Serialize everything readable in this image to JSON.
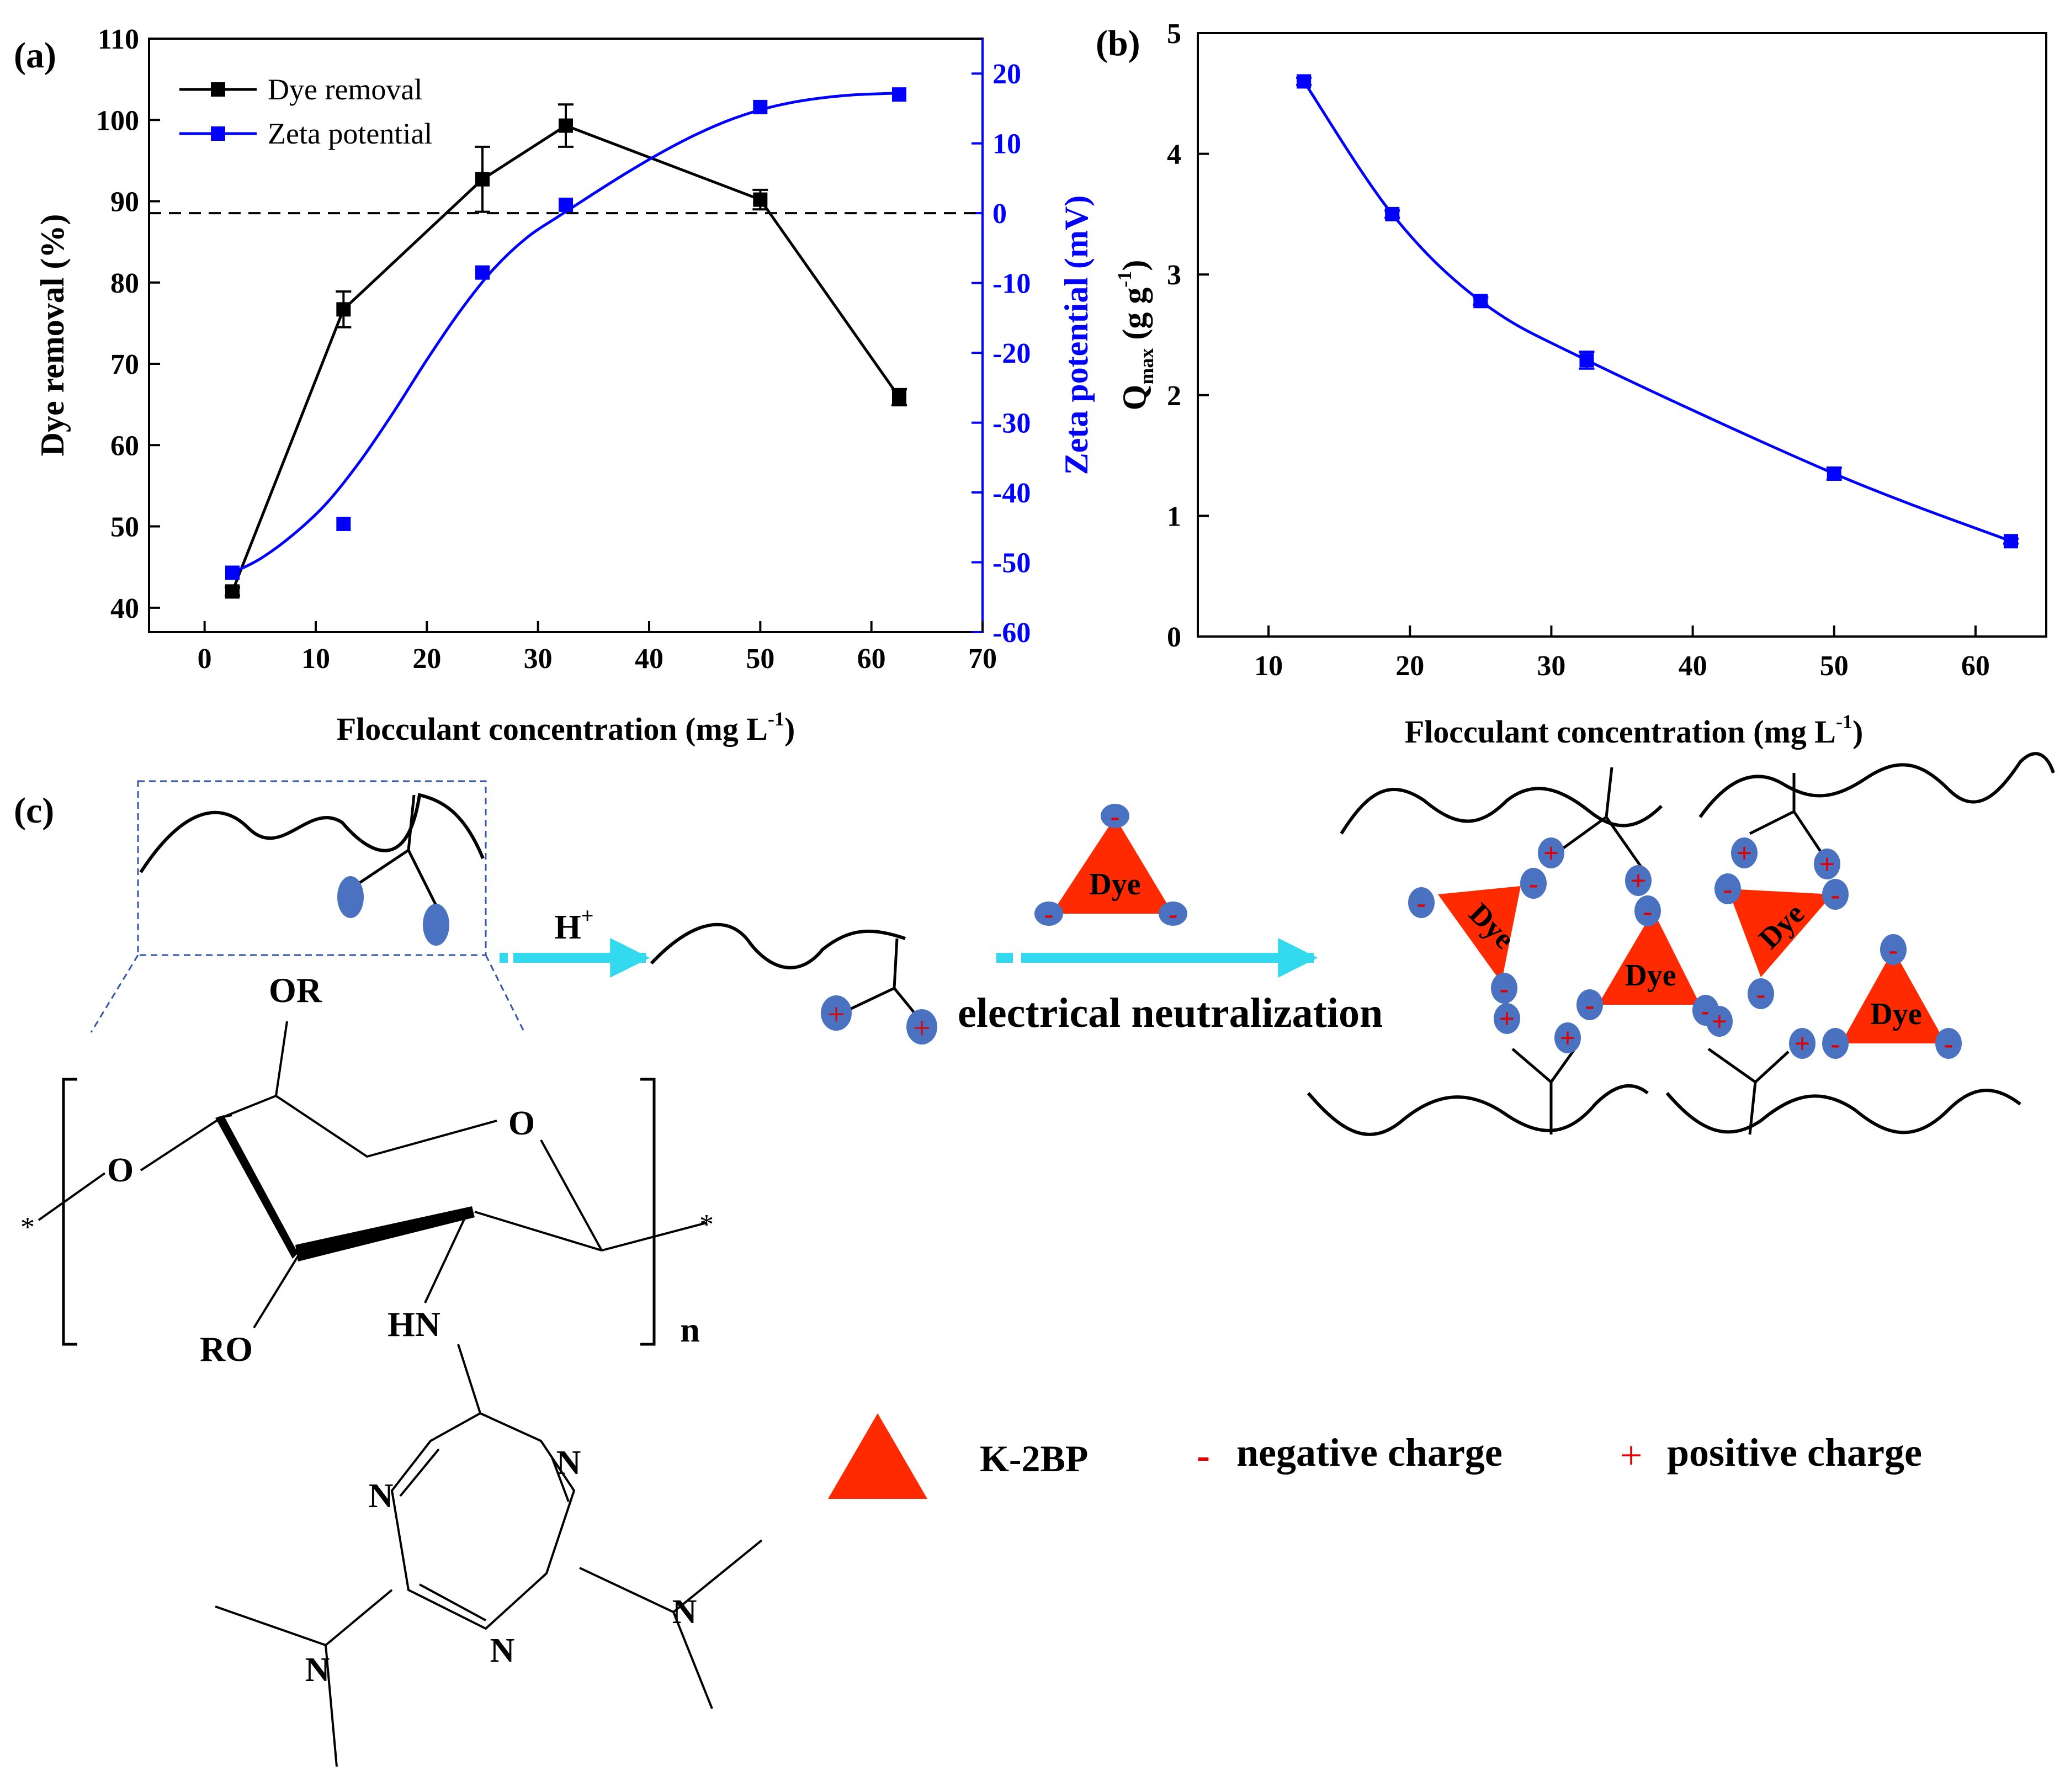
{
  "chart_data": [
    {
      "id": "a",
      "panel_label": "(a)",
      "type": "line",
      "xlabel_main": "Flocculant concentration (mg L",
      "xlabel_sup": "-1",
      "xlabel_end": ")",
      "ylabel": "Dye removal (%)",
      "y2label": "Zeta potential (mV)",
      "xlim": [
        -5,
        70
      ],
      "ylim": [
        37,
        110
      ],
      "y2lim": [
        -60,
        25
      ],
      "xticks": [
        0,
        10,
        20,
        30,
        40,
        50,
        60,
        70
      ],
      "yticks": [
        40,
        50,
        60,
        70,
        80,
        90,
        100,
        110
      ],
      "y2ticks": [
        -60,
        -50,
        -40,
        -30,
        -20,
        -10,
        0,
        10,
        20
      ],
      "reference_line": {
        "axis": "y2",
        "value": 0,
        "style": "dashed"
      },
      "series": [
        {
          "name": "Dye removal",
          "axis": "y",
          "color": "#000000",
          "x": [
            2.5,
            12.5,
            25,
            32.5,
            50,
            62.5
          ],
          "values": [
            42,
            76.7,
            92.7,
            99.3,
            90.2,
            65.9
          ],
          "errors": [
            0.5,
            2.2,
            4.0,
            2.6,
            1.2,
            1.0
          ]
        },
        {
          "name": "Zeta potential",
          "axis": "y2",
          "color": "#0000ff",
          "x": [
            2.5,
            12.5,
            25,
            32.5,
            50,
            62.5
          ],
          "values": [
            -51.5,
            -44.5,
            -8.5,
            1.2,
            15.2,
            17.0
          ]
        }
      ],
      "zeta_fit_curve": {
        "x": [
          2.5,
          5,
          8,
          11,
          14,
          17,
          20,
          23,
          26,
          29,
          32,
          35,
          38,
          41,
          44,
          47,
          50,
          53,
          56,
          59,
          62.5
        ],
        "y": [
          -51.5,
          -49.5,
          -46,
          -41.5,
          -35.5,
          -28.5,
          -21,
          -14,
          -8,
          -3.5,
          -0.3,
          2.8,
          5.8,
          8.6,
          11.1,
          13.2,
          14.8,
          15.9,
          16.6,
          17.0,
          17.2
        ]
      }
    },
    {
      "id": "b",
      "panel_label": "(b)",
      "type": "line",
      "xlabel_main": "Flocculant concentration (mg L",
      "xlabel_sup": "-1",
      "xlabel_end": ")",
      "ylabel_main": "Q",
      "ylabel_sub": "max",
      "ylabel_unit": " (g g",
      "ylabel_sup": "-1",
      "ylabel_end": ")",
      "xlim": [
        5,
        65
      ],
      "ylim": [
        0,
        5
      ],
      "xticks": [
        10,
        20,
        30,
        40,
        50,
        60
      ],
      "yticks": [
        0,
        1,
        2,
        3,
        4,
        5
      ],
      "series": [
        {
          "name": "Qmax",
          "color": "#0000ff",
          "x": [
            12.5,
            18.75,
            25,
            32.5,
            50,
            62.5
          ],
          "values": [
            4.6,
            3.5,
            2.78,
            2.29,
            1.35,
            0.79
          ],
          "errors": [
            0.03,
            0.03,
            0.03,
            0.07,
            0.05,
            0.02
          ]
        }
      ]
    }
  ],
  "legend_a": {
    "dye_removal": "Dye removal",
    "zeta": "Zeta potential"
  },
  "panel_c": {
    "label": "(c)",
    "h_plus_base": "H",
    "h_plus_sup": "+",
    "neutralization": "electrical neutralization",
    "dye": "Dye",
    "structure": {
      "or_top": "OR",
      "ro": "RO",
      "hn": "HN",
      "o_ring": "O",
      "o_left": "O",
      "n": "N",
      "n_index": "n",
      "star": "*"
    },
    "legend": {
      "k2bp": "K-2BP",
      "minus": "-",
      "negative": "negative charge",
      "plus": "+",
      "positive": "positive charge"
    },
    "colors": {
      "dye": "#ff2a00",
      "ellipse": "#4a72c0",
      "arrow": "#33d9ee",
      "sign": "#e00000"
    }
  }
}
